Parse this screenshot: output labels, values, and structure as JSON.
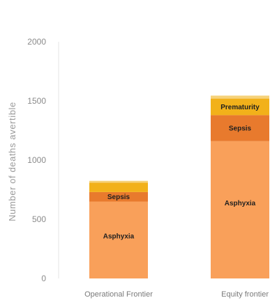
{
  "chart_data": {
    "type": "bar",
    "stacked": true,
    "categories": [
      "Operational Frontier",
      "Equity frontier"
    ],
    "series": [
      {
        "name": "Asphyxia",
        "values": [
          650,
          1160
        ],
        "color": "#f9a05a"
      },
      {
        "name": "Sepsis",
        "values": [
          80,
          220
        ],
        "color": "#e87a2d"
      },
      {
        "name": "Prematurity",
        "values": [
          80,
          140
        ],
        "color": "#f2b11a"
      },
      {
        "name": "",
        "values": [
          15,
          25
        ],
        "color": "#f6d27a"
      }
    ],
    "segment_labels": [
      [
        "Asphyxia",
        "Sepsis",
        "",
        ""
      ],
      [
        "Asphyxia",
        "Sepsis",
        "Prematurity",
        ""
      ]
    ],
    "ylabel": "Number of deaths avertible",
    "xlabel": "",
    "title": "",
    "ylim": [
      0,
      2000
    ],
    "yticks": [
      0,
      500,
      1000,
      1500,
      2000
    ],
    "grid": false,
    "legend": "none"
  }
}
